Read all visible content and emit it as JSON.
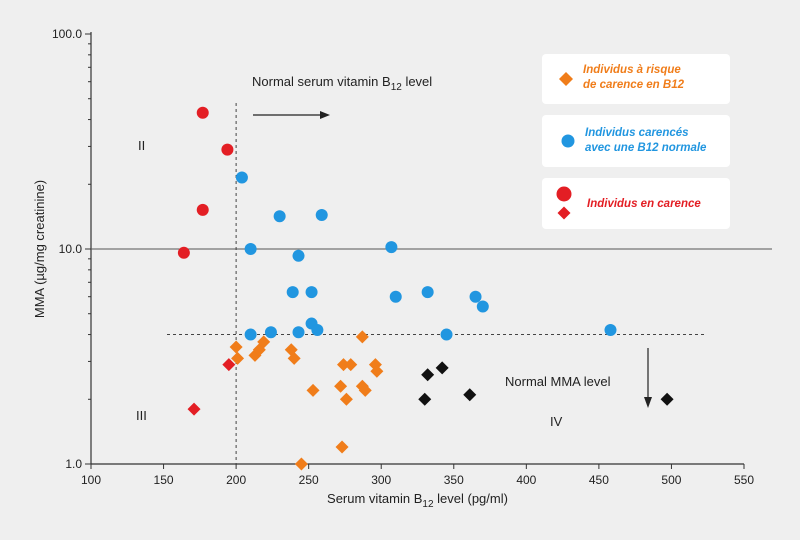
{
  "chart_data": {
    "type": "scatter",
    "title": "",
    "xlabel": "Serum vitamin B12 level (pg/ml)",
    "ylabel": "MMA (µg/mg creatinine)",
    "xlim": [
      100,
      550
    ],
    "ylim": [
      1.0,
      100.0
    ],
    "yscale": "log",
    "x_ticks": [
      100,
      150,
      200,
      250,
      300,
      350,
      400,
      450,
      500,
      550
    ],
    "y_ticks": [
      1.0,
      10.0,
      100.0
    ],
    "y_tick_labels": [
      "1.0",
      "10.0",
      "100.0"
    ],
    "grid": false,
    "reference_lines": {
      "vertical_dashed_x": 200,
      "horizontal_solid_y": 10.0,
      "horizontal_dashed_y": 4.0
    },
    "annotations": {
      "normal_b12": "Normal serum vitamin B12 level",
      "normal_mma": "Normal MMA level",
      "quadrant_ii": "II",
      "quadrant_iii": "III",
      "quadrant_iv": "IV"
    },
    "series": [
      {
        "name": "Individus à risque de carence en B12",
        "marker": "diamond",
        "color": "#f07d1a",
        "points": [
          [
            200,
            3.5
          ],
          [
            201,
            3.1
          ],
          [
            213,
            3.2
          ],
          [
            216,
            3.4
          ],
          [
            219,
            3.7
          ],
          [
            238,
            3.4
          ],
          [
            240,
            3.1
          ],
          [
            253,
            2.2
          ],
          [
            272,
            2.3
          ],
          [
            274,
            2.9
          ],
          [
            276,
            2.0
          ],
          [
            279,
            2.9
          ],
          [
            287,
            2.3
          ],
          [
            287,
            3.9
          ],
          [
            289,
            2.2
          ],
          [
            296,
            2.9
          ],
          [
            297,
            2.7
          ],
          [
            273,
            1.2
          ],
          [
            245,
            1.0
          ]
        ]
      },
      {
        "name": "Individus carencés avec une B12 normale",
        "marker": "circle",
        "color": "#2196e0",
        "points": [
          [
            204,
            21.5
          ],
          [
            210,
            10.0
          ],
          [
            230,
            14.2
          ],
          [
            259,
            14.4
          ],
          [
            243,
            9.3
          ],
          [
            307,
            10.2
          ],
          [
            239,
            6.3
          ],
          [
            252,
            6.3
          ],
          [
            310,
            6.0
          ],
          [
            332,
            6.3
          ],
          [
            365,
            6.0
          ],
          [
            370,
            5.4
          ],
          [
            252,
            4.5
          ],
          [
            256,
            4.2
          ],
          [
            243,
            4.1
          ],
          [
            224,
            4.1
          ],
          [
            210,
            4.0
          ],
          [
            345,
            4.0
          ],
          [
            458,
            4.2
          ]
        ]
      },
      {
        "name": "Individus en carence",
        "marker": "circle+diamond",
        "color": "#e31e24",
        "points": [
          [
            177,
            43.0
          ],
          [
            194,
            29.0
          ],
          [
            177,
            15.2
          ],
          [
            164,
            9.6
          ],
          [
            195,
            2.9
          ],
          [
            171,
            1.8
          ]
        ]
      },
      {
        "name": "",
        "marker": "diamond",
        "color": "#111111",
        "points": [
          [
            332,
            2.6
          ],
          [
            342,
            2.8
          ],
          [
            330,
            2.0
          ],
          [
            361,
            2.1
          ],
          [
            497,
            2.0
          ]
        ]
      }
    ]
  },
  "legend": {
    "items": [
      {
        "label": "Individus à risque\nde carence en B12",
        "color": "#f07d1a"
      },
      {
        "label": "Individus carencés\navec une B12 normale",
        "color": "#2196e0"
      },
      {
        "label": "Individus en carence",
        "color": "#e31e24"
      }
    ]
  }
}
